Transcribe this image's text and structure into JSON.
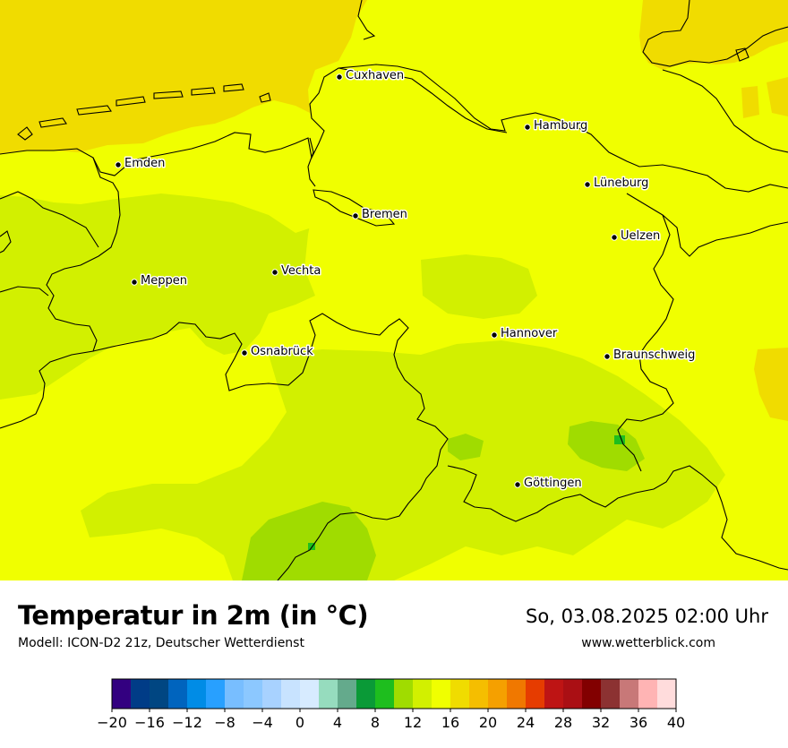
{
  "map": {
    "cities": [
      {
        "name": "Cuxhaven"
      },
      {
        "name": "Hamburg"
      },
      {
        "name": "Emden"
      },
      {
        "name": "Lüneburg"
      },
      {
        "name": "Bremen"
      },
      {
        "name": "Uelzen"
      },
      {
        "name": "Vechta"
      },
      {
        "name": "Meppen"
      },
      {
        "name": "Hannover"
      },
      {
        "name": "Osnabrück"
      },
      {
        "name": "Braunschweig"
      },
      {
        "name": "Göttingen"
      }
    ]
  },
  "footer": {
    "title": "Temperatur in 2m (in °C)",
    "model": "Modell: ICON-D2 21z, Deutscher Wetterdienst",
    "datetime": "So, 03.08.2025 02:00 Uhr",
    "website": "www.wetterblick.com"
  },
  "legend": {
    "colors": [
      "#330080",
      "#003c87",
      "#004682",
      "#0064be",
      "#008ce6",
      "#28a0ff",
      "#78beff",
      "#8cc8ff",
      "#a8d2ff",
      "#c8e3ff",
      "#d7ebff",
      "#96dcbe",
      "#64aa8c",
      "#0a9a37",
      "#1ebe1e",
      "#a0dc00",
      "#d2f000",
      "#f0ff00",
      "#f0dc00",
      "#f5be00",
      "#f5a000",
      "#f07800",
      "#e63c00",
      "#be1414",
      "#aa0f14",
      "#820000",
      "#8c3232",
      "#c87878",
      "#ffb4b4",
      "#ffdcdc"
    ],
    "tick_labels": [
      "−20",
      "−16",
      "−12",
      "−8",
      "−4",
      "0",
      "4",
      "8",
      "12",
      "16",
      "20",
      "24",
      "28",
      "32",
      "36",
      "40"
    ]
  }
}
